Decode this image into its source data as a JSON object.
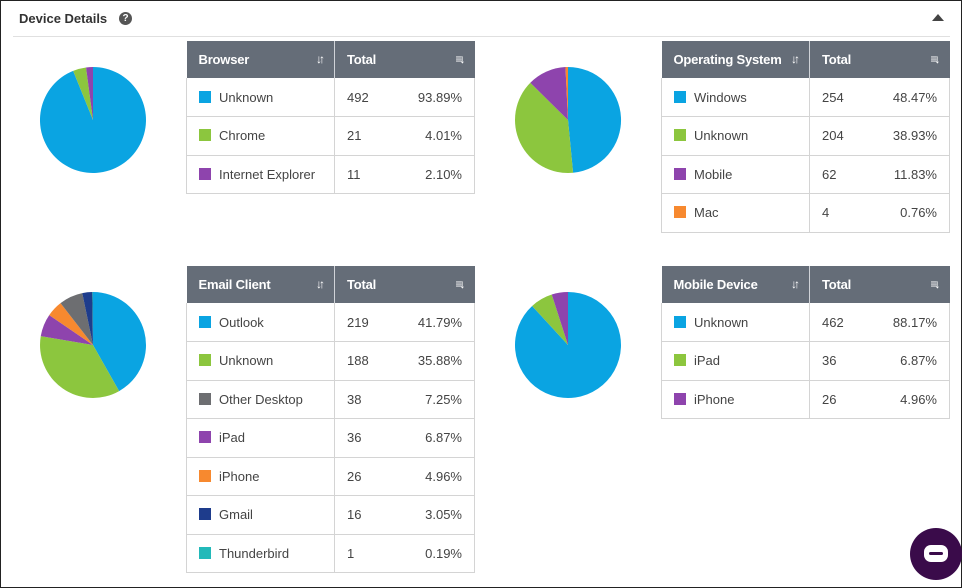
{
  "header": {
    "title": "Device Details",
    "help_glyph": "?"
  },
  "icons": {
    "sort": "sort-arrows-icon",
    "menu": "column-menu-icon",
    "collapse": "caret-up-icon",
    "chat": "chat-icon"
  },
  "colors": {
    "blue": "#0aa4e2",
    "green": "#8cc63e",
    "purple": "#8e44ad",
    "orange": "#f7892f",
    "gray": "#6d6e71",
    "navy": "#1e3c8c",
    "teal": "#22b9b9",
    "header_bg": "#656d78"
  },
  "tables": {
    "browser": {
      "col1": "Browser",
      "col2": "Total",
      "rows": [
        {
          "label": "Unknown",
          "total": "492",
          "pct": "93.89%",
          "color": "#0aa4e2"
        },
        {
          "label": "Chrome",
          "total": "21",
          "pct": "4.01%",
          "color": "#8cc63e"
        },
        {
          "label": "Internet Explorer",
          "total": "11",
          "pct": "2.10%",
          "color": "#8e44ad"
        }
      ]
    },
    "os": {
      "col1": "Operating System",
      "col2": "Total",
      "rows": [
        {
          "label": "Windows",
          "total": "254",
          "pct": "48.47%",
          "color": "#0aa4e2"
        },
        {
          "label": "Unknown",
          "total": "204",
          "pct": "38.93%",
          "color": "#8cc63e"
        },
        {
          "label": "Mobile",
          "total": "62",
          "pct": "11.83%",
          "color": "#8e44ad"
        },
        {
          "label": "Mac",
          "total": "4",
          "pct": "0.76%",
          "color": "#f7892f"
        }
      ]
    },
    "email": {
      "col1": "Email Client",
      "col2": "Total",
      "rows": [
        {
          "label": "Outlook",
          "total": "219",
          "pct": "41.79%",
          "color": "#0aa4e2"
        },
        {
          "label": "Unknown",
          "total": "188",
          "pct": "35.88%",
          "color": "#8cc63e"
        },
        {
          "label": "Other Desktop",
          "total": "38",
          "pct": "7.25%",
          "color": "#6d6e71"
        },
        {
          "label": "iPad",
          "total": "36",
          "pct": "6.87%",
          "color": "#8e44ad"
        },
        {
          "label": "iPhone",
          "total": "26",
          "pct": "4.96%",
          "color": "#f7892f"
        },
        {
          "label": "Gmail",
          "total": "16",
          "pct": "3.05%",
          "color": "#1e3c8c"
        },
        {
          "label": "Thunderbird",
          "total": "1",
          "pct": "0.19%",
          "color": "#22b9b9"
        }
      ]
    },
    "mobile": {
      "col1": "Mobile Device",
      "col2": "Total",
      "rows": [
        {
          "label": "Unknown",
          "total": "462",
          "pct": "88.17%",
          "color": "#0aa4e2"
        },
        {
          "label": "iPad",
          "total": "36",
          "pct": "6.87%",
          "color": "#8cc63e"
        },
        {
          "label": "iPhone",
          "total": "26",
          "pct": "4.96%",
          "color": "#8e44ad"
        }
      ]
    }
  },
  "chart_data": [
    {
      "type": "pie",
      "categories": [
        "Unknown",
        "Chrome",
        "Internet Explorer"
      ],
      "values": [
        492,
        21,
        11
      ],
      "colors": [
        "#0aa4e2",
        "#8cc63e",
        "#8e44ad"
      ]
    },
    {
      "type": "pie",
      "categories": [
        "Windows",
        "Unknown",
        "Mobile",
        "Mac"
      ],
      "values": [
        254,
        204,
        62,
        4
      ],
      "colors": [
        "#0aa4e2",
        "#8cc63e",
        "#8e44ad",
        "#f7892f"
      ]
    },
    {
      "type": "pie",
      "categories": [
        "Outlook",
        "Unknown",
        "iPad",
        "iPhone",
        "Other Desktop",
        "Gmail",
        "Thunderbird"
      ],
      "values": [
        219,
        188,
        36,
        26,
        38,
        16,
        1
      ],
      "colors": [
        "#0aa4e2",
        "#8cc63e",
        "#8e44ad",
        "#f7892f",
        "#6d6e71",
        "#1e3c8c",
        "#22b9b9"
      ]
    },
    {
      "type": "pie",
      "categories": [
        "Unknown",
        "iPad",
        "iPhone"
      ],
      "values": [
        462,
        36,
        26
      ],
      "colors": [
        "#0aa4e2",
        "#8cc63e",
        "#8e44ad"
      ]
    }
  ]
}
